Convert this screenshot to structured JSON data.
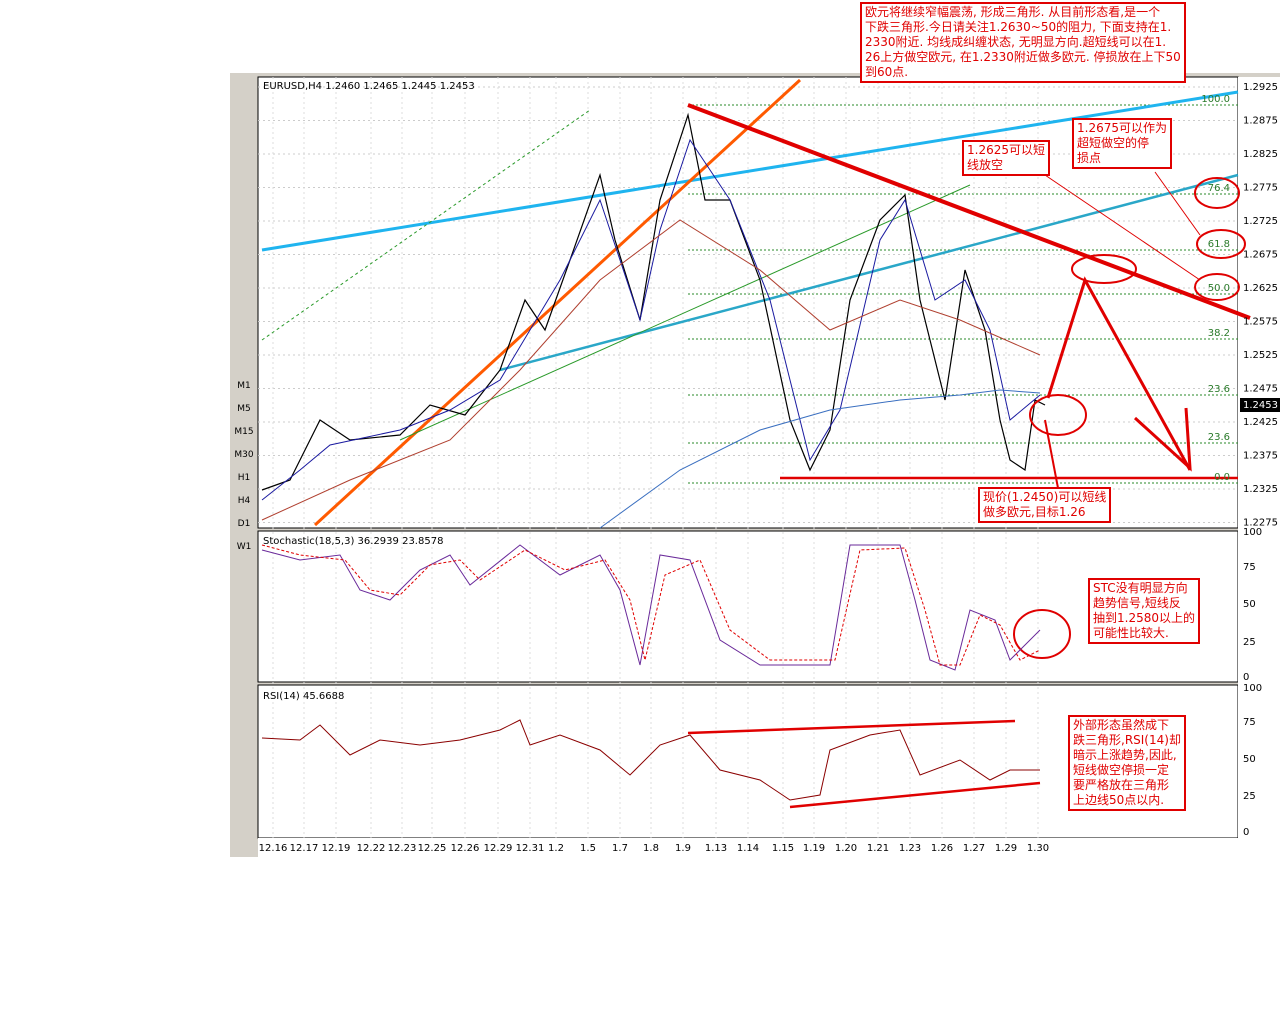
{
  "header": "EURUSD,H4  1.2460 1.2465 1.2445 1.2453",
  "price_axis": [
    "1.2925",
    "1.2875",
    "1.2825",
    "1.2775",
    "1.2725",
    "1.2675",
    "1.2625",
    "1.2575",
    "1.2525",
    "1.2475",
    "1.2425",
    "1.2375",
    "1.2325",
    "1.2275"
  ],
  "current_price": "1.2453",
  "fib_levels": [
    "100.0",
    "76.4",
    "61.8",
    "50.0",
    "38.2",
    "23.6",
    "23.6",
    "0.0"
  ],
  "timeframes": [
    "M1",
    "M5",
    "M15",
    "M30",
    "H1",
    "H4",
    "D1",
    "W1"
  ],
  "dates": [
    "12.16",
    "12.17",
    "12.19",
    "12.22",
    "12.23",
    "12.25",
    "12.26",
    "12.29",
    "12.31",
    "1.2",
    "1.5",
    "1.7",
    "1.8",
    "1.9",
    "1.13",
    "1.14",
    "1.15",
    "1.19",
    "1.20",
    "1.21",
    "1.23",
    "1.26",
    "1.27",
    "1.29",
    "1.30"
  ],
  "stochastic": {
    "title": "Stochastic(18,5,3)  36.2939  23.8578",
    "axis": [
      "100",
      "75",
      "50",
      "25",
      "0"
    ]
  },
  "rsi": {
    "title": "RSI(14)  45.6688",
    "axis": [
      "100",
      "75",
      "50",
      "25",
      "0"
    ]
  },
  "annotations": [
    {
      "lines": [
        "欧元将继续窄幅震荡, 形成三角形. 从目前形态看,是一个",
        "下跌三角形.今日请关注1.2630~50的阻力, 下面支持在1.",
        "2330附近. 均线成纠缠状态, 无明显方向.超短线可以在1.",
        "26上方做空欧元, 在1.2330附近做多欧元. 停损放在上下50",
        "到60点."
      ]
    },
    {
      "lines": [
        "1.2625可以短",
        "线放空"
      ]
    },
    {
      "lines": [
        "1.2675可以作为",
        "超短做空的停",
        "损点"
      ]
    },
    {
      "lines": [
        "现价(1.2450)可以短线",
        "做多欧元,目标1.26"
      ]
    },
    {
      "lines": [
        "STC没有明显方向",
        "趋势信号,短线反",
        "抽到1.2580以上的",
        "可能性比较大."
      ]
    },
    {
      "lines": [
        "外部形态虽然成下",
        "跌三角形,RSI(14)却",
        "暗示上涨趋势,因此,",
        "短线做空停损一定",
        "要严格放在三角形",
        "上边线50点以内."
      ]
    }
  ]
}
